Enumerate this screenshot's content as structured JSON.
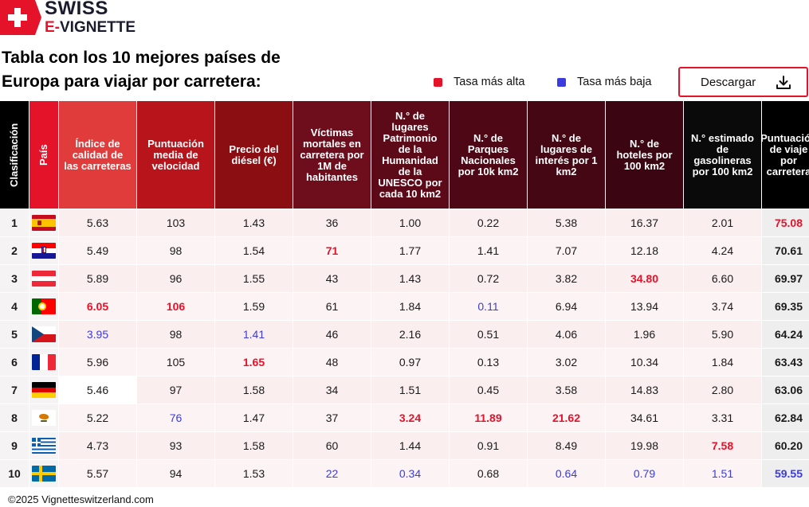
{
  "brand": {
    "line1": "SWISS",
    "line2_prefix": "E-",
    "line2_rest": "VIGNETTE"
  },
  "title": "Tabla con los 10 mejores países de Europa para viajar por carretera:",
  "legend": {
    "high": {
      "label": "Tasa más alta",
      "color": "#e5132a"
    },
    "low": {
      "label": "Tasa más baja",
      "color": "#3b3bde"
    }
  },
  "download_label": "Descargar",
  "headers": [
    {
      "label": "Clasificación",
      "color": "#000000"
    },
    {
      "label": "País",
      "color": "#e5132a"
    },
    {
      "label": "Índice de calidad de las carreteras",
      "color": "#e03c3c"
    },
    {
      "label": "Puntuación media de velocidad",
      "color": "#b8141c"
    },
    {
      "label": "Precio del diésel (€)",
      "color": "#8b0e13"
    },
    {
      "label": "Víctimas mortales en carretera por 1M de habitantes",
      "color": "#6e0e1d"
    },
    {
      "label": "N.° de lugares Patrimonio de la Humanidad de la UNESCO por cada 10 km2",
      "color": "#5c0a18"
    },
    {
      "label": "N.° de Parques Nacionales por 10k km2",
      "color": "#4e0815"
    },
    {
      "label": "N.° de lugares de interés por 1 km2",
      "color": "#450714"
    },
    {
      "label": "N.° de hoteles por 100 km2",
      "color": "#3b0611"
    },
    {
      "label": "N.° estimado de gasolineras por 100 km2",
      "color": "#0a0a0a"
    },
    {
      "label": "Puntuación de viaje por carretera",
      "color": "#000000"
    }
  ],
  "rows": [
    {
      "rank": "1",
      "flag": "spain-flag-icon",
      "cells": [
        "5.63",
        "103",
        "1.43",
        "36",
        "1.00",
        "0.22",
        "5.38",
        "16.37",
        "2.01",
        "75.08"
      ],
      "marks": [
        "",
        "",
        "",
        "",
        "",
        "",
        "",
        "",
        "",
        "hi"
      ]
    },
    {
      "rank": "2",
      "flag": "croatia-flag-icon",
      "cells": [
        "5.49",
        "98",
        "1.54",
        "71",
        "1.77",
        "1.41",
        "7.07",
        "12.18",
        "4.24",
        "70.61"
      ],
      "marks": [
        "",
        "",
        "",
        "hi",
        "",
        "",
        "",
        "",
        "",
        ""
      ]
    },
    {
      "rank": "3",
      "flag": "austria-flag-icon",
      "cells": [
        "5.89",
        "96",
        "1.55",
        "43",
        "1.43",
        "0.72",
        "3.82",
        "34.80",
        "6.60",
        "69.97"
      ],
      "marks": [
        "",
        "",
        "",
        "",
        "",
        "",
        "",
        "hi",
        "",
        ""
      ]
    },
    {
      "rank": "4",
      "flag": "portugal-flag-icon",
      "cells": [
        "6.05",
        "106",
        "1.59",
        "61",
        "1.84",
        "0.11",
        "6.94",
        "13.94",
        "3.74",
        "69.35"
      ],
      "marks": [
        "hi",
        "hi",
        "",
        "",
        "",
        "lo",
        "",
        "",
        "",
        ""
      ]
    },
    {
      "rank": "5",
      "flag": "czechia-flag-icon",
      "cells": [
        "3.95",
        "98",
        "1.41",
        "46",
        "2.16",
        "0.51",
        "4.06",
        "1.96",
        "5.90",
        "64.24"
      ],
      "marks": [
        "lo",
        "",
        "lo",
        "",
        "",
        "",
        "",
        "",
        "",
        ""
      ]
    },
    {
      "rank": "6",
      "flag": "france-flag-icon",
      "cells": [
        "5.96",
        "105",
        "1.65",
        "48",
        "0.97",
        "0.13",
        "3.02",
        "10.34",
        "1.84",
        "63.43"
      ],
      "marks": [
        "",
        "",
        "hi",
        "",
        "",
        "",
        "",
        "",
        "",
        ""
      ]
    },
    {
      "rank": "7",
      "flag": "germany-flag-icon",
      "cells": [
        "5.46",
        "97",
        "1.58",
        "34",
        "1.51",
        "0.45",
        "3.58",
        "14.83",
        "2.80",
        "63.06"
      ],
      "marks": [
        "",
        "",
        "",
        "",
        "",
        "",
        "",
        "",
        "",
        ""
      ]
    },
    {
      "rank": "8",
      "flag": "cyprus-flag-icon",
      "cells": [
        "5.22",
        "76",
        "1.47",
        "37",
        "3.24",
        "11.89",
        "21.62",
        "34.61",
        "3.31",
        "62.84"
      ],
      "marks": [
        "",
        "lo",
        "",
        "",
        "hi",
        "hi",
        "hi",
        "",
        "",
        ""
      ]
    },
    {
      "rank": "9",
      "flag": "greece-flag-icon",
      "cells": [
        "4.73",
        "93",
        "1.58",
        "60",
        "1.44",
        "0.91",
        "8.49",
        "19.98",
        "7.58",
        "60.20"
      ],
      "marks": [
        "",
        "",
        "",
        "",
        "",
        "",
        "",
        "",
        "hi",
        ""
      ]
    },
    {
      "rank": "10",
      "flag": "sweden-flag-icon",
      "cells": [
        "5.57",
        "94",
        "1.53",
        "22",
        "0.34",
        "0.68",
        "0.64",
        "0.79",
        "1.51",
        "59.55"
      ],
      "marks": [
        "",
        "",
        "",
        "lo",
        "lo",
        "",
        "lo",
        "lo",
        "lo",
        "lo"
      ]
    }
  ],
  "footer": "©2025 Vignetteswitzerland.com"
}
